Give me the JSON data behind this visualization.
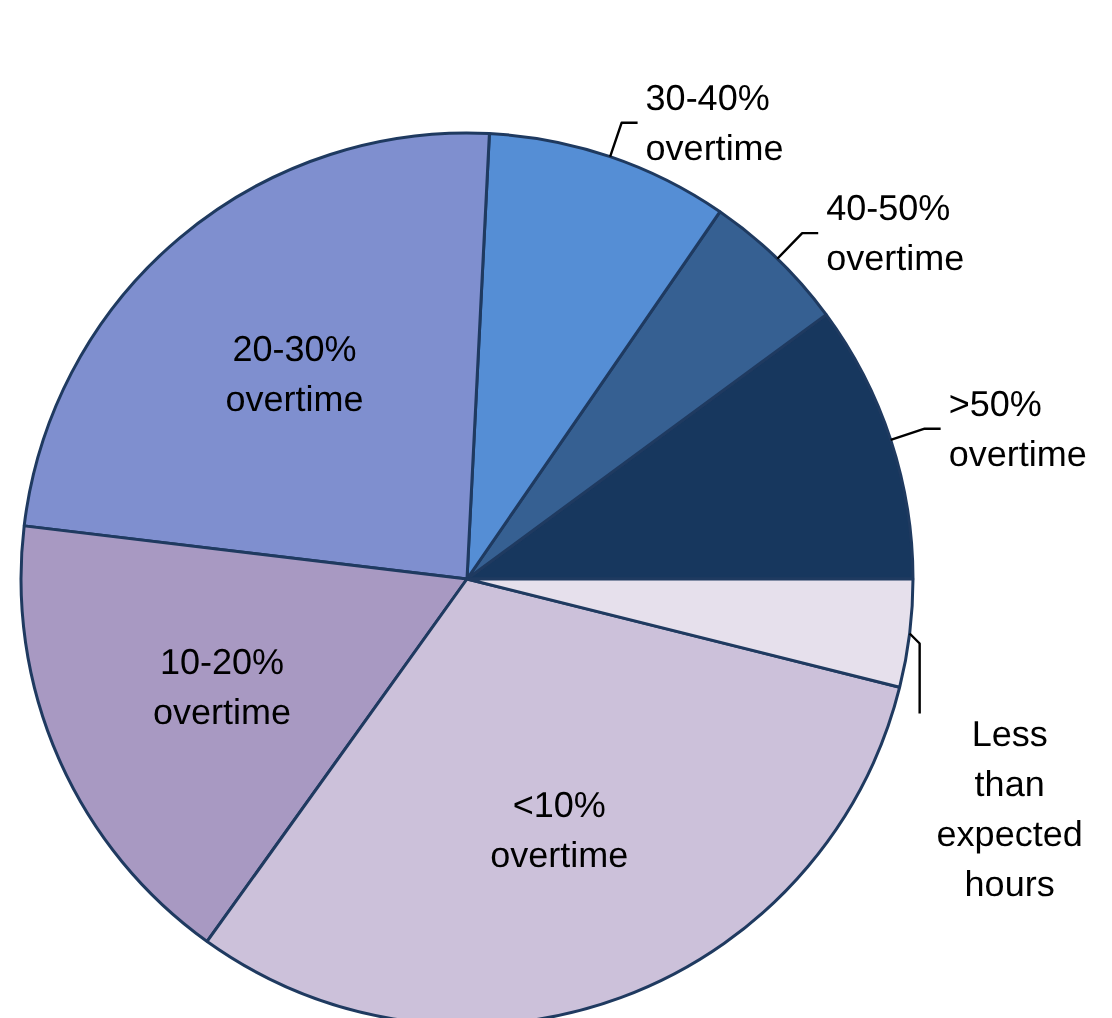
{
  "chart_data": {
    "type": "pie",
    "categories": [
      ">50% overtime",
      "40-50% overtime",
      "30-40% overtime",
      "20-30% overtime",
      "10-20% overtime",
      "<10% overtime",
      "Less than expected hours"
    ],
    "values": [
      10.1,
      5.3,
      8.8,
      23.9,
      17,
      31,
      3.9
    ],
    "colors": [
      "#17375e",
      "#366092",
      "#558ed5",
      "#7f8fcf",
      "#a899c2",
      "#ccc1da",
      "#e6e0ec"
    ]
  }
}
